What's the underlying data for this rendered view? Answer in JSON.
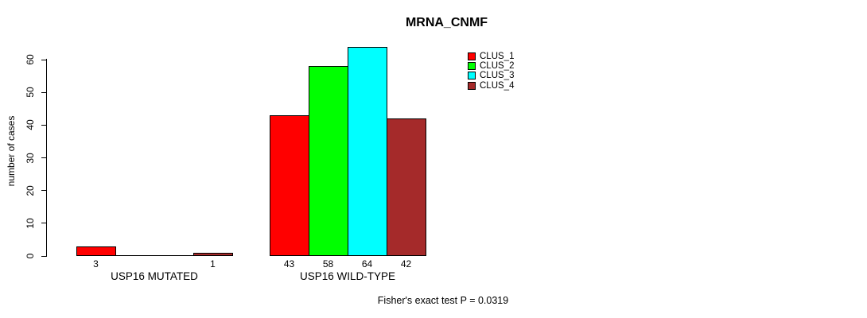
{
  "chart_data": {
    "type": "bar",
    "title": "MRNA_CNMF",
    "ylabel": "number of cases",
    "xlabel": "",
    "ylim": [
      0,
      64
    ],
    "yticks": [
      0,
      10,
      20,
      30,
      40,
      50,
      60
    ],
    "grid": false,
    "legend_position": "top-right",
    "categories": [
      "USP16 MUTATED",
      "USP16 WILD-TYPE"
    ],
    "series": [
      {
        "name": "CLUS_1",
        "color": "#ff0000",
        "values": [
          3,
          43
        ]
      },
      {
        "name": "CLUS_2",
        "color": "#00ff00",
        "values": [
          0,
          58
        ]
      },
      {
        "name": "CLUS_3",
        "color": "#00ffff",
        "values": [
          0,
          64
        ]
      },
      {
        "name": "CLUS_4",
        "color": "#a52a2a",
        "values": [
          1,
          42
        ]
      }
    ],
    "bar_value_labels": {
      "shown": true,
      "show_zero": false
    },
    "annotation": "Fisher's exact test P = 0.0319"
  }
}
